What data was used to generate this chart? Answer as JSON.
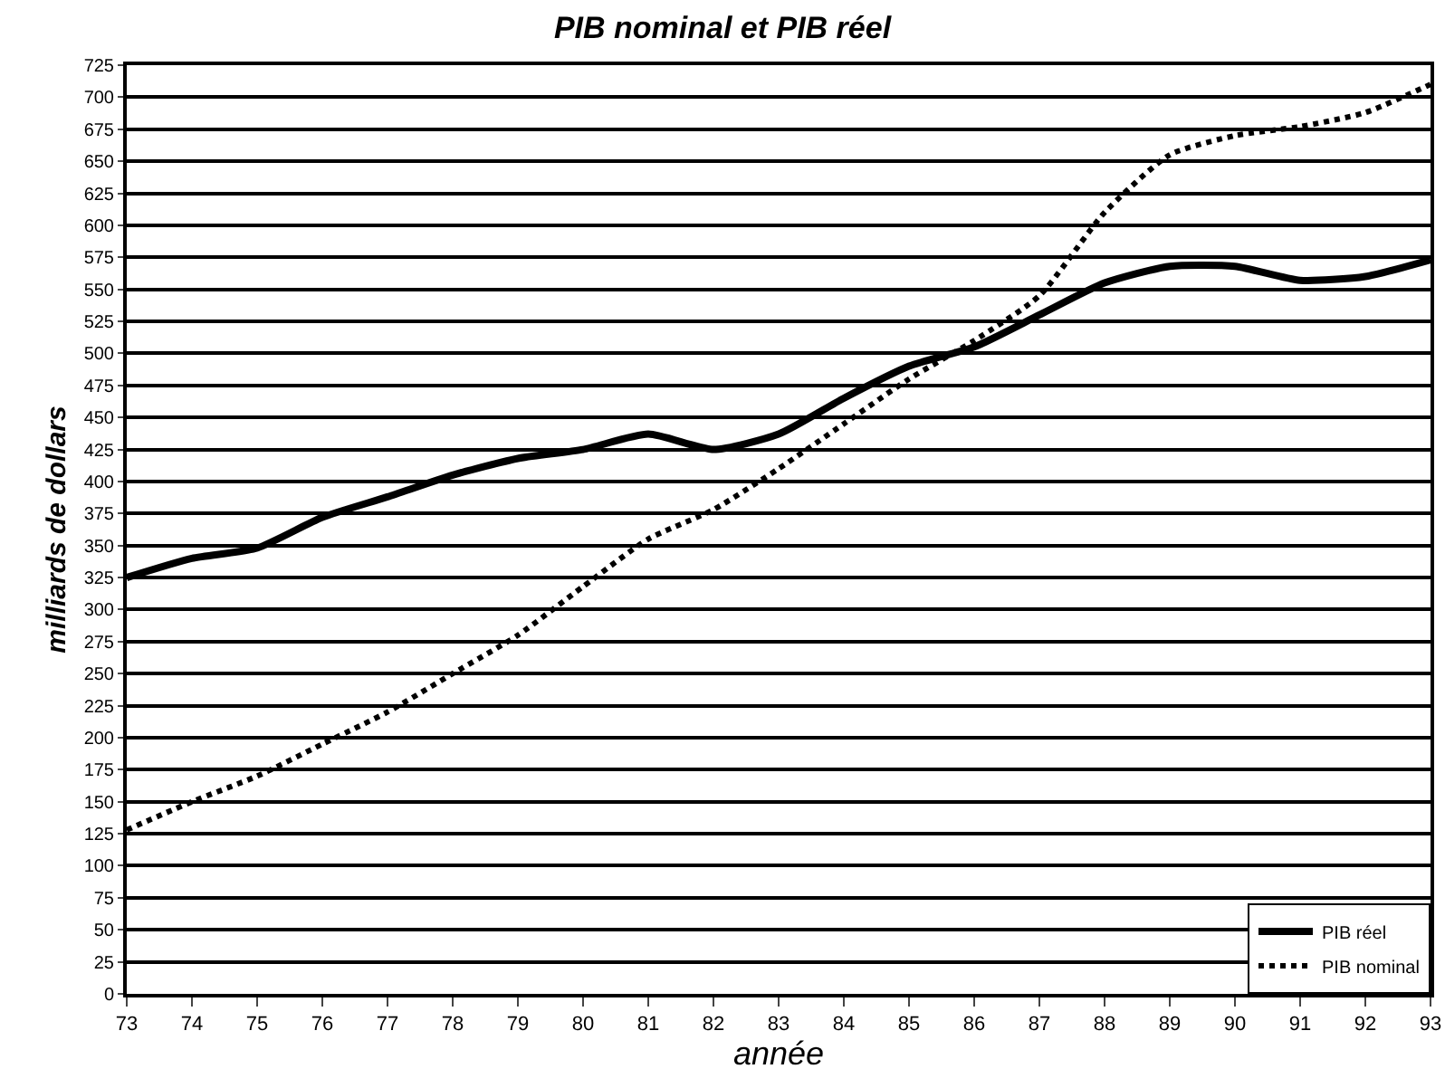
{
  "chart_data": {
    "type": "line",
    "title": "PIB nominal et PIB réel",
    "xlabel": "année",
    "ylabel": "milliards de dollars",
    "x": [
      73,
      74,
      75,
      76,
      77,
      78,
      79,
      80,
      81,
      82,
      83,
      84,
      85,
      86,
      87,
      88,
      89,
      90,
      91,
      92,
      93
    ],
    "series": [
      {
        "name": "PIB réel",
        "color": "#000000",
        "line_style": "solid",
        "values": [
          325,
          340,
          348,
          372,
          388,
          405,
          418,
          425,
          437,
          425,
          437,
          465,
          490,
          505,
          530,
          555,
          568,
          568,
          557,
          560,
          573
        ]
      },
      {
        "name": "PIB nominal",
        "color": "#000000",
        "line_style": "dotted",
        "values": [
          128,
          150,
          170,
          195,
          220,
          250,
          280,
          318,
          355,
          378,
          410,
          445,
          480,
          510,
          545,
          610,
          655,
          670,
          677,
          688,
          710
        ]
      }
    ],
    "xlim": [
      73,
      93
    ],
    "xticks": [
      73,
      74,
      75,
      76,
      77,
      78,
      79,
      80,
      81,
      82,
      83,
      84,
      85,
      86,
      87,
      88,
      89,
      90,
      91,
      92,
      93
    ],
    "ylim": [
      0,
      725
    ],
    "yticks": [
      0,
      25,
      50,
      75,
      100,
      125,
      150,
      175,
      200,
      225,
      250,
      275,
      300,
      325,
      350,
      375,
      400,
      425,
      450,
      475,
      500,
      525,
      550,
      575,
      600,
      625,
      650,
      675,
      700,
      725
    ],
    "grid": "y",
    "legend": "bottom right",
    "marker": "none"
  }
}
